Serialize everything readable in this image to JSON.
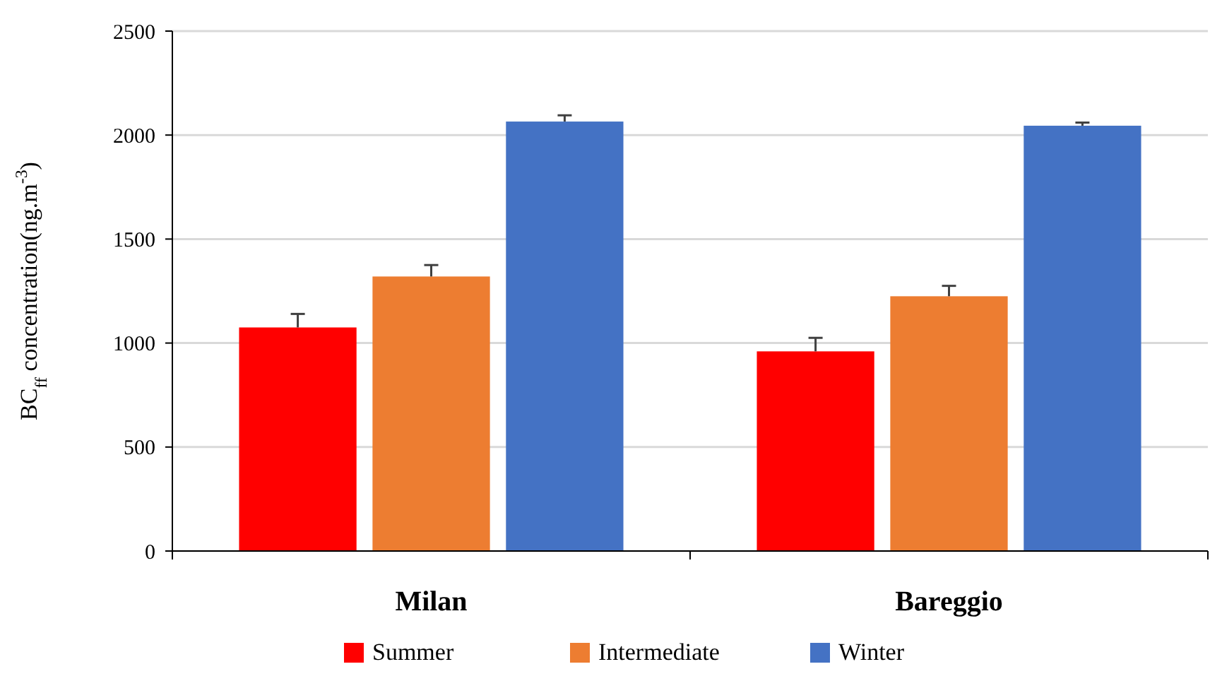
{
  "chart_data": {
    "type": "bar",
    "ylabel": "BC$_{ff}$ concentration(ng.m$^{-3}$)",
    "categories": [
      "Milan",
      "Bareggio"
    ],
    "series": [
      {
        "name": "Summer",
        "color": "#ff0000",
        "values": [
          1075,
          960
        ],
        "errors": [
          65,
          65
        ]
      },
      {
        "name": "Intermediate",
        "color": "#ed7d31",
        "values": [
          1320,
          1225
        ],
        "errors": [
          55,
          50
        ]
      },
      {
        "name": "Winter",
        "color": "#4472c4",
        "values": [
          2065,
          2045
        ],
        "errors": [
          30,
          15
        ]
      }
    ],
    "ylim": [
      0,
      2500
    ],
    "yticks": [
      0,
      500,
      1000,
      1500,
      2000,
      2500
    ],
    "grid": "y",
    "legend": "bottom"
  }
}
